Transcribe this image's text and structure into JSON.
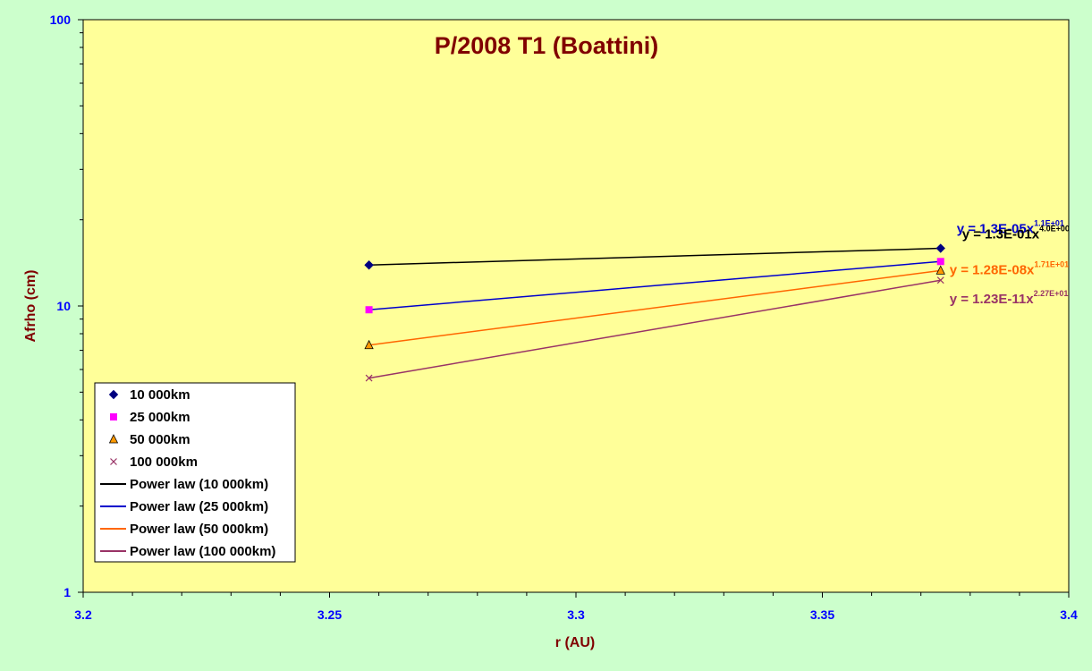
{
  "chart_data": {
    "type": "scatter",
    "title": "P/2008 T1 (Boattini)",
    "xlabel": "r (AU)",
    "ylabel": "Afrho (cm)",
    "xlim": [
      3.2,
      3.4
    ],
    "ylim": [
      1,
      100
    ],
    "y_scale": "log",
    "grid": false,
    "legend_position": "bottom-left",
    "x_ticks": [
      "3.2",
      "3.25",
      "3.3",
      "3.35",
      "3.4"
    ],
    "y_ticks": [
      "1",
      "10",
      "100"
    ],
    "colors": {
      "plot_background": "#ffff99",
      "page_background": "#ccffcc",
      "title": "#800000",
      "axis_title": "#800000",
      "tick_label": "#0000ff"
    },
    "series": [
      {
        "name": "10 000km",
        "marker": "diamond",
        "color": "#000080",
        "x": [
          3.258,
          3.374
        ],
        "y": [
          13.9,
          15.9
        ]
      },
      {
        "name": "25 000km",
        "marker": "square",
        "color": "#ff00ff",
        "x": [
          3.258,
          3.374
        ],
        "y": [
          9.7,
          14.3
        ]
      },
      {
        "name": "50 000km",
        "marker": "triangle",
        "color": "#ff9900",
        "x": [
          3.258,
          3.374
        ],
        "y": [
          7.3,
          13.3
        ]
      },
      {
        "name": "100 000km",
        "marker": "x",
        "color": "#993366",
        "x": [
          3.258,
          3.374
        ],
        "y": [
          5.6,
          12.3
        ]
      }
    ],
    "fits": [
      {
        "name": "Power law (10 000km)",
        "color": "#000000",
        "eq_main": "y = 1.3E-01x",
        "eq_exp": "4.0E+00",
        "x": [
          3.258,
          3.374
        ],
        "y": [
          13.9,
          15.9
        ]
      },
      {
        "name": "Power law (25 000km)",
        "color": "#0000cc",
        "eq_main": "y = 1.3E-05x",
        "eq_exp": "1.1E+01",
        "x": [
          3.258,
          3.374
        ],
        "y": [
          9.7,
          14.3
        ]
      },
      {
        "name": "Power law (50 000km)",
        "color": "#ff6600",
        "eq_main": "y = 1.28E-08x",
        "eq_exp": "1.71E+01",
        "x": [
          3.258,
          3.374
        ],
        "y": [
          7.3,
          13.3
        ]
      },
      {
        "name": "Power law (100 000km)",
        "color": "#993366",
        "eq_main": "y = 1.23E-11x",
        "eq_exp": "2.27E+01",
        "x": [
          3.258,
          3.374
        ],
        "y": [
          5.6,
          12.3
        ]
      }
    ]
  }
}
